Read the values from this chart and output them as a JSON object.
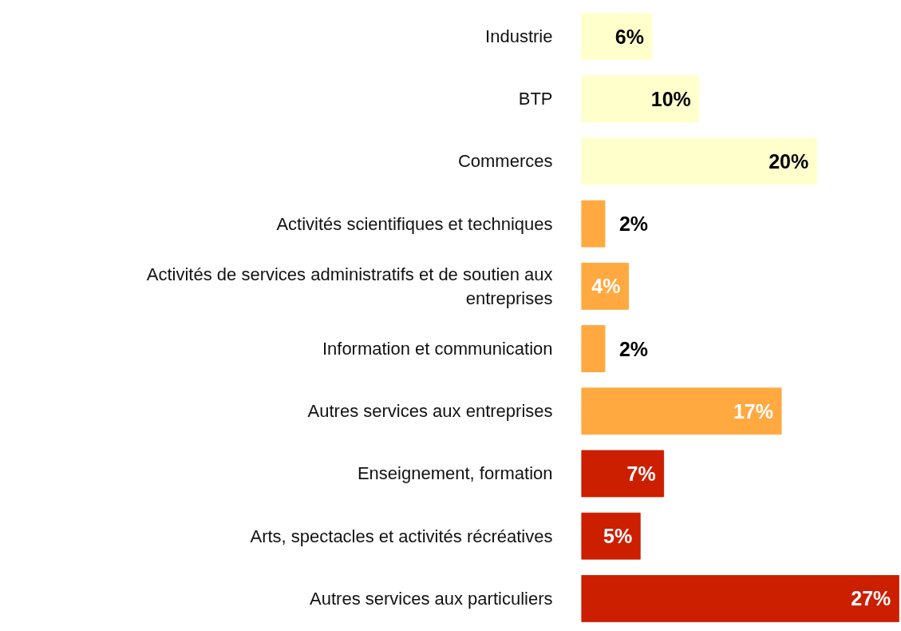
{
  "chart_data": {
    "type": "bar",
    "orientation": "horizontal",
    "categories": [
      "Industrie",
      "BTP",
      "Commerces",
      "Activités scientifiques et techniques",
      "Activités de services administratifs et de soutien aux entreprises",
      "Information et communication",
      "Autres services aux entreprises",
      "Enseignement, formation",
      "Arts, spectacles et activités récréatives",
      "Autres services aux particuliers"
    ],
    "values": [
      6,
      10,
      20,
      2,
      4,
      2,
      17,
      7,
      5,
      27
    ],
    "colors": [
      "#ffffcc",
      "#ffffcc",
      "#ffffcc",
      "#ffa940",
      "#ffa940",
      "#ffa940",
      "#ffa940",
      "#cc1f00",
      "#cc1f00",
      "#cc1f00"
    ],
    "value_labels": [
      "6%",
      "10%",
      "20%",
      "2%",
      "4%",
      "2%",
      "17%",
      "7%",
      "5%",
      "27%"
    ],
    "grid": false
  }
}
